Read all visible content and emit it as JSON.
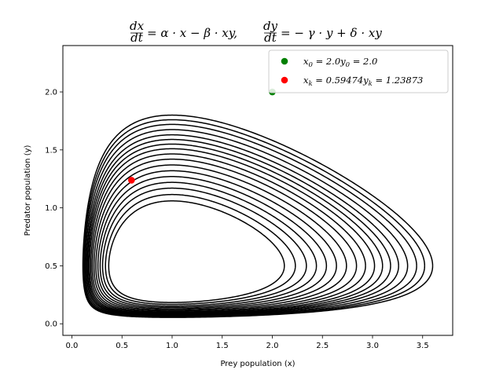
{
  "chart_data": {
    "type": "line",
    "title": "dx/dt = α · x − β · xy,      dy/dt = − γ · y + δ · xy",
    "title_parts": {
      "lhs1_num": "dx",
      "lhs1_den": "dt",
      "rhs1": "= α · x − β · xy,",
      "lhs2_num": "dy",
      "lhs2_den": "dt",
      "rhs2": "= − γ · y + δ · xy"
    },
    "xlabel": "Prey population (x)",
    "ylabel": "Predator population (y)",
    "xlim": [
      -0.09,
      3.8
    ],
    "ylim": [
      -0.1,
      2.4
    ],
    "xticks": [
      "0.0",
      "0.5",
      "1.0",
      "1.5",
      "2.0",
      "2.5",
      "3.0",
      "3.5"
    ],
    "yticks": [
      "0.0",
      "0.5",
      "1.0",
      "1.5",
      "2.0"
    ],
    "grid": false,
    "legend_position": "top-right",
    "series": [
      {
        "color": "#000000",
        "kind": "trajectory"
      }
    ],
    "points": [
      {
        "label": "x_0 = 2.0y_0 = 2.0",
        "x": 2.0,
        "y": 2.0,
        "color": "#008000"
      },
      {
        "label": "x_k = 0.59474y_k = 1.23873",
        "x": 0.59474,
        "y": 1.23873,
        "color": "#ff0000"
      }
    ],
    "legend": [
      {
        "var1": "x",
        "sub1": "0",
        "val1": " = 2.0",
        "var2": "y",
        "sub2": "0",
        "val2": " = 2.0",
        "color": "#008000"
      },
      {
        "var1": "x",
        "sub1": "k",
        "val1": " = 0.59474",
        "var2": "y",
        "sub2": "k",
        "val2": " = 1.23873",
        "color": "#ff0000"
      }
    ],
    "orbit_max_x": [
      3.6,
      3.52,
      3.44,
      3.35,
      3.26,
      3.18,
      3.1,
      3.02,
      2.93,
      2.84,
      2.74,
      2.64,
      2.54,
      2.44,
      2.34,
      2.23,
      2.12
    ]
  }
}
